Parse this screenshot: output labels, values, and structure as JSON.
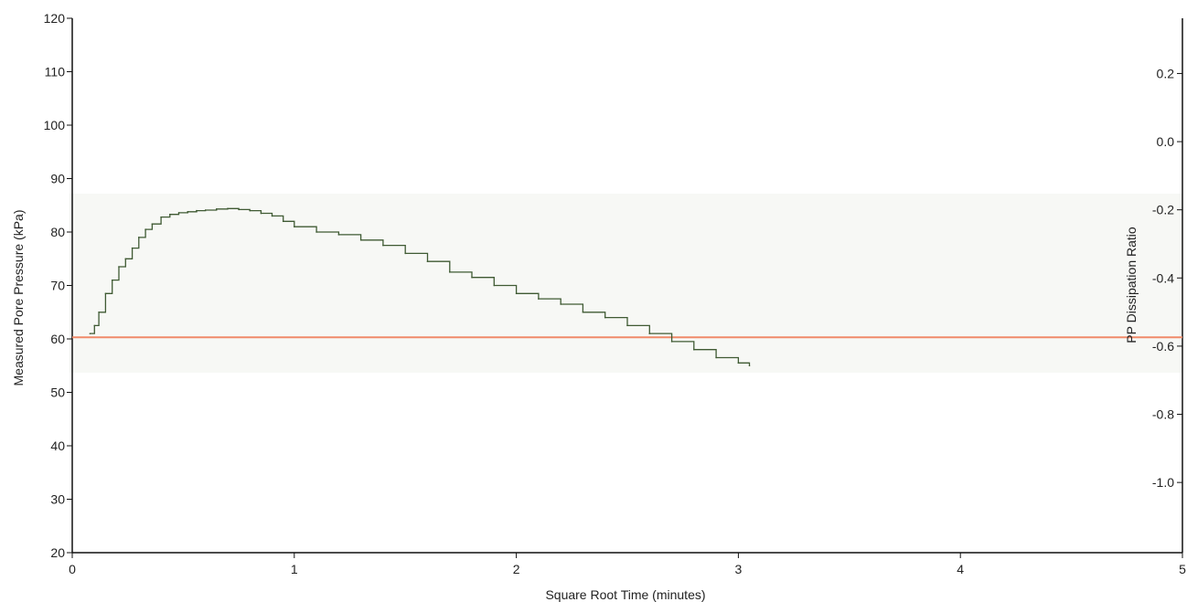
{
  "chart_data": {
    "type": "line",
    "xlabel": "Square Root Time (minutes)",
    "ylabel": "Measured Pore Pressure (kPa)",
    "y2label": "PP Dissipation Ratio",
    "xlim": [
      0,
      5
    ],
    "ylim": [
      20,
      120
    ],
    "y2lim": [
      -1.206,
      0.362
    ],
    "xticks": [
      0,
      1,
      2,
      3,
      4,
      5
    ],
    "yticks": [
      20,
      30,
      40,
      50,
      60,
      70,
      80,
      90,
      100,
      110,
      120
    ],
    "y2ticks": [
      "0.2",
      "0.0",
      "-0.2",
      "-0.4",
      "-0.6",
      "-0.8",
      "-1.0"
    ],
    "y2tick_values": [
      0.2,
      0.0,
      -0.2,
      -0.4,
      -0.6,
      -0.8,
      -1.0
    ],
    "grid": false,
    "reference_line": {
      "y": 60.3,
      "color": "#f08a6a"
    },
    "series": [
      {
        "color": "#3f5a33",
        "x": [
          0.08,
          0.1,
          0.12,
          0.15,
          0.18,
          0.21,
          0.24,
          0.27,
          0.3,
          0.33,
          0.36,
          0.4,
          0.44,
          0.48,
          0.52,
          0.56,
          0.6,
          0.65,
          0.7,
          0.75,
          0.8,
          0.85,
          0.9,
          0.95,
          1.0,
          1.1,
          1.2,
          1.3,
          1.4,
          1.5,
          1.6,
          1.7,
          1.8,
          1.9,
          2.0,
          2.1,
          2.2,
          2.3,
          2.4,
          2.5,
          2.6,
          2.7,
          2.8,
          2.9,
          3.0,
          3.05
        ],
        "values": [
          61.0,
          62.5,
          65.0,
          68.5,
          71.0,
          73.5,
          75.0,
          77.0,
          79.0,
          80.5,
          81.5,
          82.8,
          83.3,
          83.6,
          83.8,
          84.0,
          84.1,
          84.3,
          84.4,
          84.2,
          84.0,
          83.5,
          83.0,
          82.0,
          81.0,
          80.0,
          79.5,
          78.5,
          77.5,
          76.0,
          74.5,
          72.5,
          71.5,
          70.0,
          68.5,
          67.5,
          66.5,
          65.0,
          64.0,
          62.5,
          61.0,
          59.5,
          58.0,
          56.5,
          55.5,
          55.0
        ]
      }
    ]
  }
}
